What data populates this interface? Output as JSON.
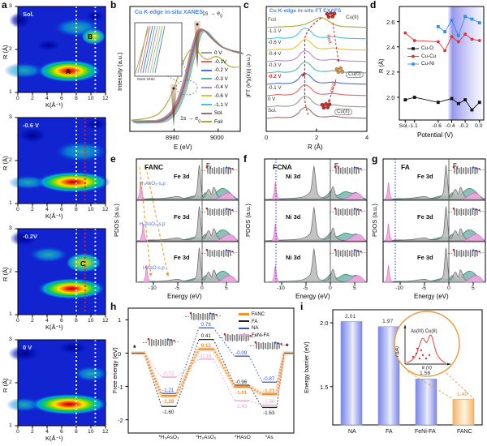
{
  "panels": {
    "a": {
      "label": "a",
      "ylabel": "R (Å)",
      "xlabel": "K(Å⁻¹)",
      "yticks": [
        "3",
        "2",
        "1"
      ],
      "xticks": [
        "0",
        "2",
        "4",
        "6",
        "8",
        "10",
        "12"
      ],
      "plots": [
        {
          "title": "Sol.",
          "featureA": "A",
          "featureB": "B"
        },
        {
          "title": "-0.6 V"
        },
        {
          "title": "-0.2V",
          "featureC": "C"
        },
        {
          "title": "0 V"
        }
      ]
    },
    "b": {
      "label": "b",
      "title": "Cu K-edge in-situ XANES",
      "ylabel": "Intensity (a.u.)",
      "xlabel": "E (eV)",
      "xticks": [
        "8980",
        "9000"
      ],
      "inset_xticks": "8986  8988",
      "ann1_pre": "1s → e",
      "ann1_sub": "g",
      "ann2_pre": "1s → e",
      "ann2_sub": "g",
      "ann2_sup": "'",
      "legend": [
        {
          "label": "0 V",
          "color": "#9a9a9a"
        },
        {
          "label": "-0.1V",
          "color": "#e06868"
        },
        {
          "label": "-0.2 V",
          "color": "#4a6fd8"
        },
        {
          "label": "-0.3 V",
          "color": "#52b8a8"
        },
        {
          "label": "-0.4 V",
          "color": "#b48ad8"
        },
        {
          "label": "-0.6 V",
          "color": "#e0c040"
        },
        {
          "label": "-1.1 V",
          "color": "#40c8d8"
        },
        {
          "label": "Sol.",
          "color": "#907070"
        },
        {
          "label": "Foil",
          "color": "#a8a838"
        }
      ]
    },
    "c": {
      "label": "c",
      "title": "Cu K-edge in-situ FT EXAFS",
      "ylabel": "|FT (k³χ(k))| (a.u.)",
      "xlabel": "R (Å)",
      "xticks": [
        "0",
        "2",
        "4"
      ],
      "curves": [
        {
          "label": "Foil",
          "color": "#a8a838",
          "labelColor": "#555533"
        },
        {
          "label": "-1.1 V",
          "color": "#40c8d8",
          "labelColor": "#333333"
        },
        {
          "label": "-0.6 V",
          "color": "#e0c040",
          "labelColor": "#333333"
        },
        {
          "label": "-0.4 V",
          "color": "#b48ad8",
          "labelColor": "#333333"
        },
        {
          "label": "-0.3 V",
          "color": "#52b8a8",
          "labelColor": "#333333"
        },
        {
          "label": "-0.2 V",
          "color": "#4a6fd8",
          "labelColor": "#e02020"
        },
        {
          "label": "-0.1 V",
          "color": "#e06868",
          "labelColor": "#333333"
        },
        {
          "label": "0 V",
          "color": "#9a9a9a",
          "labelColor": "#333333"
        },
        {
          "label": "Sol.",
          "color": "#907070",
          "labelColor": "#333333"
        }
      ],
      "annotations": {
        "top": "Cu(II)",
        "mid": "Cu(0)",
        "bottom": "Cu(II)",
        "red": "Red.",
        "oxid": "Oxid."
      }
    },
    "d": {
      "label": "d",
      "ylabel": "R (Å)",
      "xlabel": "Potential (V)"
    },
    "e": {
      "label": "e",
      "name": "FANC",
      "element": "Fe 3d",
      "ef_pre": "E",
      "ef_sub": "f",
      "species": [
        "H₃AsO₃-s,p",
        "H₂AsO₂-s,p",
        "HAsO-s,p"
      ],
      "ylabel": "PDOS (a.u.)",
      "xlabel": "Energy (eV)",
      "xticks": [
        "-10",
        "-5",
        "0",
        "5"
      ]
    },
    "f": {
      "label": "f",
      "name": "FCNA",
      "element": "Ni 3d",
      "ef_pre": "E",
      "ef_sub": "f",
      "ylabel": "PDOS (a.u.)",
      "xlabel": "Energy (eV)",
      "xticks": [
        "-10",
        "-5",
        "0",
        "5"
      ]
    },
    "g": {
      "label": "g",
      "name": "FA",
      "element": "Fe 3d",
      "ef_pre": "E",
      "ef_sub": "f",
      "ylabel": "PDOS (a.u.)",
      "xlabel": "Energy (eV)",
      "xticks": [
        "-10",
        "-5",
        "0",
        "5"
      ]
    },
    "h": {
      "label": "h",
      "ylabel": "Free energy (eV)",
      "star": "*"
    },
    "i": {
      "label": "i",
      "ylabel": "Energy barrier (eV)",
      "inset_title": "As(III) Cu(II)",
      "inset_ylabel": "I (μA)",
      "inset_xlabel": "E (V)"
    }
  },
  "chart_data": [
    {
      "panel": "a",
      "type": "heatmap",
      "description": "Wavelet-transform EXAFS contour maps (jet colormap)",
      "xlabel": "K(Å⁻¹)",
      "ylabel": "R (Å)",
      "xrange": [
        0,
        12
      ],
      "yrange": [
        1,
        3
      ],
      "plots": [
        {
          "title": "Sol.",
          "hotspots": [
            {
              "K": 7.0,
              "R": 1.5,
              "label": "A"
            },
            {
              "K": 10.4,
              "R": 2.3,
              "label": "B"
            }
          ],
          "guide_lines_K": [
            8,
            10.6
          ]
        },
        {
          "title": "-0.6 V",
          "hotspots": [
            {
              "K": 7.6,
              "R": 1.5
            }
          ],
          "guide_lines_K": [
            8,
            10.6
          ],
          "red_line_K": 9.2
        },
        {
          "title": "-0.2V",
          "hotspots": [
            {
              "K": 7.6,
              "R": 1.6
            },
            {
              "K": 9.0,
              "R": 2.2,
              "label": "C"
            }
          ],
          "guide_lines_K": [
            8,
            10.6
          ],
          "red_line_K": 9.2
        },
        {
          "title": "0 V",
          "hotspots": [
            {
              "K": 7.3,
              "R": 1.5
            }
          ],
          "guide_lines_K": [
            8,
            10.6
          ]
        }
      ]
    },
    {
      "panel": "b",
      "type": "line",
      "description": "Normalized Cu K-edge XANES spectra vs applied potential; edge near 8985-8995 eV, white-line peak near 8997 eV",
      "x_ticks": [
        8980,
        9000
      ],
      "series_labels": [
        "0 V",
        "-0.1V",
        "-0.2 V",
        "-0.3 V",
        "-0.4 V",
        "-0.6 V",
        "-1.1 V",
        "Sol.",
        "Foil"
      ]
    },
    {
      "panel": "c",
      "type": "line",
      "description": "Stacked FT-EXAFS magnitude curves; main Cu-O peak near R=1.55 Å, Cu foil Cu-Cu peak near R=2.2 Å",
      "x_range": [
        0,
        4
      ],
      "curve_order_top_to_bottom": [
        "Foil",
        "-1.1 V",
        "-0.6 V",
        "-0.4 V",
        "-0.3 V",
        "-0.2 V",
        "-0.1 V",
        "0 V",
        "Sol."
      ]
    },
    {
      "panel": "d",
      "type": "line",
      "ylabel": "R (Å)",
      "xlabel": "Potential (V)",
      "ylim": [
        1.82,
        2.72
      ],
      "yticks": [
        "2.0",
        "2.2",
        "2.4",
        "2.6"
      ],
      "xtick_labels": [
        "Sol.",
        "-1.1",
        "-0.6",
        "-0.4",
        "-0.2",
        "0.0"
      ],
      "x_slots": [
        "Sol.",
        "-1.1",
        "-0.6",
        "-0.5",
        "-0.4",
        "-0.3",
        "-0.2",
        "-0.1",
        "0.0"
      ],
      "series": [
        {
          "name": "Cu-O",
          "color": "#111111",
          "marker": "square",
          "points": [
            [
              0,
              1.98
            ],
            [
              1,
              2.0
            ],
            [
              2,
              1.96
            ],
            [
              4,
              1.99
            ],
            [
              5,
              1.95
            ],
            [
              6,
              1.98
            ],
            [
              7,
              1.9
            ],
            [
              8,
              1.96
            ]
          ]
        },
        {
          "name": "Cu-Cu",
          "color": "#e03030",
          "marker": "circle",
          "points": [
            [
              0,
              2.51
            ],
            [
              1,
              2.45
            ],
            [
              2,
              2.44
            ],
            [
              3,
              2.37
            ],
            [
              4,
              2.48
            ],
            [
              5,
              2.44
            ],
            [
              6,
              2.5
            ],
            [
              7,
              2.46
            ],
            [
              8,
              2.45
            ]
          ]
        },
        {
          "name": "Cu-Ni",
          "color": "#2e8fe8",
          "marker": "square",
          "points": [
            [
              2,
              2.56
            ],
            [
              3,
              2.52
            ],
            [
              4,
              2.61
            ],
            [
              5,
              2.49
            ],
            [
              6,
              2.64
            ],
            [
              7,
              2.62
            ],
            [
              8,
              2.59
            ]
          ]
        }
      ],
      "band_x": [
        -0.45,
        0.0
      ]
    },
    {
      "panel": "h",
      "type": "line",
      "ylabel": "Free energy (eV)",
      "yticks": [
        "1",
        "0",
        "-1",
        "-2"
      ],
      "categories": [
        "*H₃AsO₃",
        "*H₂AsO₂",
        "*HAsO",
        "*As"
      ],
      "series": [
        {
          "name": "NA",
          "color": "#3a52c4",
          "values": [
            0,
            -1.21,
            0.76,
            -0.09,
            -0.87,
            0
          ],
          "label_side": [
            "",
            "above",
            "above",
            "above",
            "above",
            ""
          ]
        },
        {
          "name": "FA",
          "color": "#222222",
          "values": [
            0,
            -1.6,
            0.41,
            -0.96,
            -1.63,
            0
          ],
          "label_side": [
            "",
            "below",
            "above",
            "above",
            "below",
            ""
          ]
        },
        {
          "name": "FeNi-FA",
          "color": "#ee9ed2",
          "values": [
            0,
            -0.72,
            -0.18,
            -1.43,
            -1.56,
            0
          ],
          "label_side": [
            "",
            "above",
            "above",
            "below",
            "above",
            ""
          ]
        },
        {
          "name": "FANC",
          "color": "#f09030",
          "values": [
            0,
            -1.28,
            0.12,
            -1.01,
            -1.23,
            0
          ],
          "label_side": [
            "",
            "below",
            "above",
            "below",
            "above",
            ""
          ]
        }
      ],
      "legend_order": [
        "FANC",
        "FA",
        "NA",
        "FeNi-FA"
      ]
    },
    {
      "panel": "i",
      "type": "bar",
      "ylabel": "Energy barrier (eV)",
      "ylim": [
        1.2,
        2.15
      ],
      "yticks": [
        "1.5",
        "2.0"
      ],
      "categories": [
        "NA",
        "FA",
        "FeNi-FA",
        "FANC"
      ],
      "values": [
        2.01,
        1.97,
        1.56,
        1.4
      ],
      "bar_colors": [
        "blue",
        "blue",
        "blue",
        "orange"
      ],
      "value_label_colors": [
        "#333333",
        "#333333",
        "#333333",
        "#e89020"
      ]
    }
  ]
}
